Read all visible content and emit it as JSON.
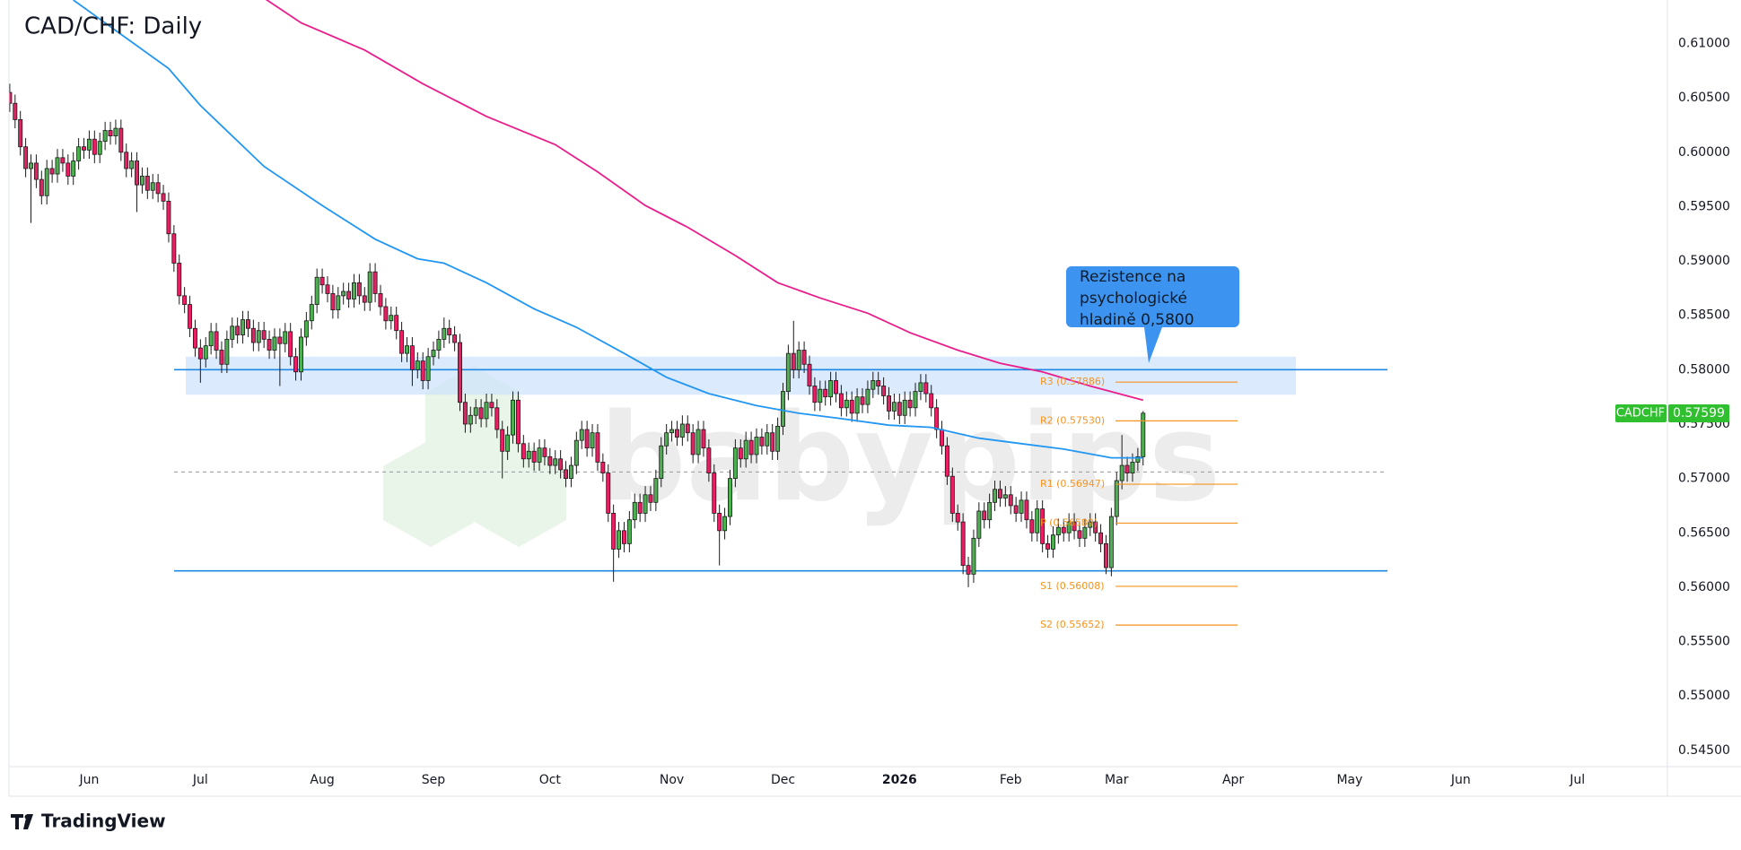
{
  "chart_data": {
    "type": "candlestick",
    "title": "CAD/CHF: Daily",
    "open": [
      0.6055,
      0.6045,
      0.603,
      0.6005,
      0.5985,
      0.599,
      0.5975,
      0.596,
      0.5985,
      0.598,
      0.5995,
      0.599,
      0.5978,
      0.5992,
      0.6005,
      0.6002,
      0.6012,
      0.5998,
      0.601,
      0.602,
      0.6015,
      0.6022,
      0.6,
      0.5985,
      0.5992,
      0.597,
      0.5978,
      0.5965,
      0.5972,
      0.5962,
      0.5955,
      0.5925,
      0.5898,
      0.5868,
      0.586,
      0.5838,
      0.582,
      0.581,
      0.5822,
      0.5835,
      0.5818,
      0.5805,
      0.5828,
      0.584,
      0.5832,
      0.5846,
      0.5838,
      0.5825,
      0.5836,
      0.5828,
      0.5818,
      0.583,
      0.5824,
      0.5835,
      0.5812,
      0.5798,
      0.583,
      0.5845,
      0.586,
      0.5885,
      0.5878,
      0.587,
      0.5855,
      0.5868,
      0.5872,
      0.5865,
      0.588,
      0.5868,
      0.5862,
      0.589,
      0.587,
      0.5858,
      0.5845,
      0.585,
      0.5836,
      0.5815,
      0.5822,
      0.58,
      0.5808,
      0.579,
      0.5812,
      0.5818,
      0.5828,
      0.5838,
      0.5832,
      0.5825,
      0.577,
      0.575,
      0.5758,
      0.5765,
      0.5755,
      0.577,
      0.5765,
      0.5745,
      0.5725,
      0.574,
      0.5772,
      0.5732,
      0.5718,
      0.5725,
      0.5715,
      0.5728,
      0.572,
      0.5712,
      0.5718,
      0.5708,
      0.57,
      0.5712,
      0.5735,
      0.5745,
      0.5728,
      0.5742,
      0.5715,
      0.5705,
      0.5668,
      0.5635,
      0.5652,
      0.564,
      0.5662,
      0.5678,
      0.5668,
      0.5685,
      0.5678,
      0.57,
      0.573,
      0.5742,
      0.5745,
      0.5738,
      0.575,
      0.5742,
      0.5722,
      0.5745,
      0.5728,
      0.5705,
      0.5668,
      0.5652,
      0.5665,
      0.57,
      0.5728,
      0.5718,
      0.5735,
      0.5722,
      0.5738,
      0.573,
      0.5742,
      0.5725,
      0.5748,
      0.578,
      0.5815,
      0.58,
      0.5818,
      0.5805,
      0.5785,
      0.577,
      0.5782,
      0.5775,
      0.579,
      0.5778,
      0.5765,
      0.5772,
      0.576,
      0.5775,
      0.5768,
      0.5782,
      0.579,
      0.5785,
      0.5776,
      0.5762,
      0.577,
      0.5758,
      0.5772,
      0.5765,
      0.578,
      0.5788,
      0.5778,
      0.5765,
      0.5745,
      0.573,
      0.5702,
      0.5668,
      0.566,
      0.562,
      0.5612,
      0.5645,
      0.567,
      0.5662,
      0.5678,
      0.569,
      0.5682,
      0.5685,
      0.5675,
      0.5668,
      0.568,
      0.5662,
      0.565,
      0.5672,
      0.564,
      0.5635,
      0.5648,
      0.5655,
      0.565,
      0.566,
      0.5652,
      0.5645,
      0.5655,
      0.566,
      0.565,
      0.564,
      0.5618,
      0.5665,
      0.5698,
      0.5712,
      0.5705,
      0.5715,
      0.572
    ],
    "high": [
      0.6063,
      0.6053,
      0.6038,
      0.6013,
      0.5998,
      0.5998,
      0.5983,
      0.5993,
      0.5993,
      0.6003,
      0.6003,
      0.5998,
      0.6,
      0.6013,
      0.6013,
      0.602,
      0.602,
      0.6018,
      0.6028,
      0.6028,
      0.603,
      0.603,
      0.6008,
      0.6,
      0.6,
      0.5986,
      0.5986,
      0.598,
      0.598,
      0.597,
      0.5963,
      0.5933,
      0.5906,
      0.5876,
      0.5868,
      0.5846,
      0.5828,
      0.583,
      0.5843,
      0.5843,
      0.5826,
      0.5836,
      0.5848,
      0.5848,
      0.5854,
      0.5854,
      0.5846,
      0.5844,
      0.5844,
      0.5836,
      0.5838,
      0.5838,
      0.5843,
      0.5843,
      0.582,
      0.5838,
      0.5853,
      0.5868,
      0.5893,
      0.5893,
      0.5886,
      0.5878,
      0.5876,
      0.588,
      0.588,
      0.5888,
      0.5888,
      0.5876,
      0.5898,
      0.5898,
      0.5878,
      0.5866,
      0.5858,
      0.5858,
      0.5844,
      0.583,
      0.583,
      0.5816,
      0.5816,
      0.582,
      0.5826,
      0.5836,
      0.5848,
      0.5846,
      0.584,
      0.5833,
      0.5778,
      0.5766,
      0.5773,
      0.5773,
      0.5778,
      0.5778,
      0.5773,
      0.5753,
      0.5748,
      0.578,
      0.578,
      0.574,
      0.5733,
      0.5733,
      0.5736,
      0.5736,
      0.5728,
      0.5726,
      0.5726,
      0.5716,
      0.572,
      0.5743,
      0.5753,
      0.5753,
      0.575,
      0.575,
      0.5723,
      0.5713,
      0.5676,
      0.566,
      0.566,
      0.567,
      0.5686,
      0.5686,
      0.5693,
      0.5693,
      0.5708,
      0.5738,
      0.575,
      0.5753,
      0.5753,
      0.5758,
      0.5758,
      0.575,
      0.5753,
      0.5753,
      0.5736,
      0.5713,
      0.5676,
      0.5673,
      0.5708,
      0.5736,
      0.5736,
      0.5743,
      0.5743,
      0.5746,
      0.5746,
      0.575,
      0.575,
      0.5756,
      0.5788,
      0.5823,
      0.5845,
      0.5826,
      0.5826,
      0.5813,
      0.5793,
      0.579,
      0.579,
      0.5798,
      0.5798,
      0.5786,
      0.578,
      0.578,
      0.5783,
      0.5783,
      0.579,
      0.5798,
      0.5798,
      0.5793,
      0.5784,
      0.5778,
      0.5778,
      0.578,
      0.578,
      0.5788,
      0.5796,
      0.5796,
      0.5786,
      0.5773,
      0.5753,
      0.5738,
      0.571,
      0.5676,
      0.5668,
      0.5628,
      0.5653,
      0.5678,
      0.5678,
      0.5686,
      0.5698,
      0.5698,
      0.5693,
      0.5693,
      0.5683,
      0.5688,
      0.5688,
      0.567,
      0.568,
      0.568,
      0.5648,
      0.5656,
      0.5663,
      0.5663,
      0.5668,
      0.5668,
      0.566,
      0.5663,
      0.5668,
      0.5668,
      0.5658,
      0.5648,
      0.5673,
      0.5706,
      0.574,
      0.572,
      0.5723,
      0.5728,
      0.5762
    ],
    "low": [
      0.6037,
      0.6022,
      0.5997,
      0.5977,
      0.5935,
      0.5967,
      0.5952,
      0.5952,
      0.5972,
      0.5972,
      0.5982,
      0.597,
      0.597,
      0.5984,
      0.5994,
      0.5994,
      0.599,
      0.599,
      0.6002,
      0.6007,
      0.6007,
      0.5992,
      0.5977,
      0.5977,
      0.5945,
      0.5962,
      0.5957,
      0.5957,
      0.5954,
      0.5947,
      0.5917,
      0.589,
      0.586,
      0.5852,
      0.583,
      0.5812,
      0.5788,
      0.5802,
      0.5814,
      0.581,
      0.5797,
      0.5797,
      0.582,
      0.5824,
      0.5824,
      0.583,
      0.5817,
      0.5817,
      0.582,
      0.581,
      0.581,
      0.5785,
      0.5816,
      0.5804,
      0.579,
      0.579,
      0.5822,
      0.5837,
      0.5852,
      0.587,
      0.5862,
      0.5847,
      0.5847,
      0.586,
      0.5857,
      0.5857,
      0.586,
      0.5854,
      0.5854,
      0.5862,
      0.585,
      0.5837,
      0.5837,
      0.5828,
      0.5807,
      0.5807,
      0.5785,
      0.5792,
      0.5782,
      0.5782,
      0.5804,
      0.581,
      0.582,
      0.5824,
      0.5817,
      0.5762,
      0.5742,
      0.5742,
      0.575,
      0.5747,
      0.5747,
      0.5757,
      0.5737,
      0.57,
      0.5717,
      0.5732,
      0.5724,
      0.571,
      0.571,
      0.5707,
      0.5707,
      0.5712,
      0.5704,
      0.5704,
      0.57,
      0.5692,
      0.5692,
      0.5704,
      0.5727,
      0.572,
      0.572,
      0.5707,
      0.5697,
      0.566,
      0.5605,
      0.5627,
      0.5632,
      0.5632,
      0.5654,
      0.566,
      0.566,
      0.567,
      0.567,
      0.5692,
      0.5722,
      0.5734,
      0.573,
      0.573,
      0.5734,
      0.5714,
      0.5714,
      0.572,
      0.5697,
      0.566,
      0.562,
      0.5644,
      0.5657,
      0.5692,
      0.571,
      0.571,
      0.5714,
      0.5714,
      0.5722,
      0.5722,
      0.5717,
      0.5717,
      0.574,
      0.5772,
      0.5792,
      0.5792,
      0.5797,
      0.5777,
      0.5762,
      0.5762,
      0.5767,
      0.5767,
      0.577,
      0.5757,
      0.5757,
      0.5752,
      0.5752,
      0.576,
      0.576,
      0.5774,
      0.5777,
      0.5768,
      0.5754,
      0.5754,
      0.575,
      0.575,
      0.5757,
      0.5757,
      0.5772,
      0.577,
      0.5757,
      0.5737,
      0.5722,
      0.5694,
      0.566,
      0.5652,
      0.5612,
      0.56,
      0.5604,
      0.5637,
      0.5654,
      0.5654,
      0.567,
      0.5674,
      0.5674,
      0.5667,
      0.566,
      0.566,
      0.5654,
      0.5642,
      0.5642,
      0.5632,
      0.5627,
      0.5627,
      0.564,
      0.5642,
      0.5642,
      0.5644,
      0.5637,
      0.5637,
      0.5647,
      0.5642,
      0.5632,
      0.5612,
      0.561,
      0.5657,
      0.569,
      0.5697,
      0.5697,
      0.5707,
      0.5712
    ],
    "close": [
      0.6045,
      0.603,
      0.6005,
      0.5985,
      0.599,
      0.5975,
      0.596,
      0.5985,
      0.598,
      0.5995,
      0.599,
      0.5978,
      0.5992,
      0.6005,
      0.6002,
      0.6012,
      0.5998,
      0.601,
      0.602,
      0.6015,
      0.6022,
      0.6,
      0.5985,
      0.5992,
      0.597,
      0.5978,
      0.5965,
      0.5972,
      0.5962,
      0.5955,
      0.5925,
      0.5898,
      0.5868,
      0.586,
      0.5838,
      0.582,
      0.581,
      0.5822,
      0.5835,
      0.5818,
      0.5805,
      0.5828,
      0.584,
      0.5832,
      0.5846,
      0.5838,
      0.5825,
      0.5836,
      0.5828,
      0.5818,
      0.583,
      0.5824,
      0.5835,
      0.5812,
      0.5798,
      0.583,
      0.5845,
      0.586,
      0.5885,
      0.5878,
      0.587,
      0.5855,
      0.5868,
      0.5872,
      0.5865,
      0.588,
      0.5868,
      0.5862,
      0.589,
      0.587,
      0.5858,
      0.5845,
      0.585,
      0.5836,
      0.5815,
      0.5822,
      0.58,
      0.5808,
      0.579,
      0.5812,
      0.5818,
      0.5828,
      0.5838,
      0.5832,
      0.5825,
      0.577,
      0.575,
      0.5758,
      0.5765,
      0.5755,
      0.577,
      0.5765,
      0.5745,
      0.5725,
      0.574,
      0.5772,
      0.5732,
      0.5718,
      0.5725,
      0.5715,
      0.5728,
      0.572,
      0.5712,
      0.5718,
      0.5708,
      0.57,
      0.5712,
      0.5735,
      0.5745,
      0.5728,
      0.5742,
      0.5715,
      0.5705,
      0.5668,
      0.5635,
      0.5652,
      0.564,
      0.5662,
      0.5678,
      0.5668,
      0.5685,
      0.5678,
      0.57,
      0.573,
      0.5742,
      0.5745,
      0.5738,
      0.575,
      0.5742,
      0.5722,
      0.5745,
      0.5728,
      0.5705,
      0.5668,
      0.5652,
      0.5665,
      0.57,
      0.5728,
      0.5718,
      0.5735,
      0.5722,
      0.5738,
      0.573,
      0.5742,
      0.5725,
      0.5748,
      0.578,
      0.5815,
      0.58,
      0.5818,
      0.5805,
      0.5785,
      0.577,
      0.5782,
      0.5775,
      0.579,
      0.5778,
      0.5765,
      0.5772,
      0.576,
      0.5775,
      0.5768,
      0.5782,
      0.579,
      0.5785,
      0.5776,
      0.5762,
      0.577,
      0.5758,
      0.5772,
      0.5765,
      0.578,
      0.5788,
      0.5778,
      0.5765,
      0.5745,
      0.573,
      0.5702,
      0.5668,
      0.566,
      0.562,
      0.5612,
      0.5645,
      0.567,
      0.5662,
      0.5678,
      0.569,
      0.5682,
      0.5685,
      0.5675,
      0.5668,
      0.568,
      0.5662,
      0.565,
      0.5672,
      0.564,
      0.5635,
      0.5648,
      0.5655,
      0.565,
      0.566,
      0.5652,
      0.5645,
      0.5655,
      0.566,
      0.565,
      0.564,
      0.5618,
      0.5665,
      0.5698,
      0.5712,
      0.5705,
      0.5715,
      0.572,
      0.576
    ],
    "up_color": "#4caf50",
    "down_color": "#e91e63",
    "moving_averages": [
      {
        "color": "#2196f3",
        "x": [
          12,
          30,
          36,
          48,
          59,
          69,
          77,
          82,
          90,
          99,
          107,
          116,
          124,
          132,
          141,
          149,
          157,
          166,
          174,
          183,
          191,
          199,
          208,
          214
        ],
        "values": [
          0.614,
          0.6077,
          0.6043,
          0.5987,
          0.5951,
          0.592,
          0.5902,
          0.5898,
          0.588,
          0.5856,
          0.5839,
          0.5815,
          0.5793,
          0.5778,
          0.5767,
          0.576,
          0.5755,
          0.5749,
          0.5747,
          0.5737,
          0.5732,
          0.5727,
          0.5719,
          0.5719
        ]
      },
      {
        "color": "#e91e8c",
        "x": [
          47,
          55,
          67,
          78,
          90,
          103,
          111,
          120,
          128,
          137,
          145,
          153,
          162,
          170,
          179,
          187,
          195,
          204,
          214
        ],
        "values": [
          0.6145,
          0.6119,
          0.6094,
          0.6063,
          0.6033,
          0.6007,
          0.5982,
          0.5951,
          0.5931,
          0.5905,
          0.588,
          0.5866,
          0.5852,
          0.5834,
          0.5818,
          0.5806,
          0.5798,
          0.5785,
          0.5772
        ]
      }
    ],
    "xlim": [
      -1,
      313
    ],
    "ylim": [
      0.5435,
      0.614
    ],
    "xticks": [
      {
        "value": 15,
        "label": "Jun"
      },
      {
        "value": 36,
        "label": "Jul"
      },
      {
        "value": 59,
        "label": "Aug"
      },
      {
        "value": 80,
        "label": "Sep"
      },
      {
        "value": 102,
        "label": "Oct"
      },
      {
        "value": 125,
        "label": "Nov"
      },
      {
        "value": 146,
        "label": "Dec"
      },
      {
        "value": 168,
        "label": "2026"
      },
      {
        "value": 189,
        "label": "Feb"
      },
      {
        "value": 209,
        "label": "Mar"
      },
      {
        "value": 231,
        "label": "Apr"
      },
      {
        "value": 253,
        "label": "May"
      },
      {
        "value": 274,
        "label": "Jun"
      },
      {
        "value": 296,
        "label": "Jul"
      }
    ],
    "yticks": [
      {
        "value": 0.545,
        "label": "0.54500"
      },
      {
        "value": 0.55,
        "label": "0.55000"
      },
      {
        "value": 0.555,
        "label": "0.55500"
      },
      {
        "value": 0.56,
        "label": "0.56000"
      },
      {
        "value": 0.565,
        "label": "0.56500"
      },
      {
        "value": 0.57,
        "label": "0.57000"
      },
      {
        "value": 0.575,
        "label": "0.57500"
      },
      {
        "value": 0.58,
        "label": "0.58000"
      },
      {
        "value": 0.585,
        "label": "0.58500"
      },
      {
        "value": 0.59,
        "label": "0.59000"
      },
      {
        "value": 0.595,
        "label": "0.59500"
      },
      {
        "value": 0.6,
        "label": "0.60000"
      },
      {
        "value": 0.605,
        "label": "0.60500"
      },
      {
        "value": 0.61,
        "label": "0.61000"
      }
    ],
    "resistance_zone": {
      "low": 0.5777,
      "high": 0.5812,
      "color": "#cfe3fb"
    },
    "hlines": [
      {
        "value": 0.58,
        "color": "#1e88e5"
      },
      {
        "value": 0.5615,
        "color": "#1e88e5"
      }
    ],
    "dashed_line": 0.5706,
    "pivots": [
      {
        "label": "R3 (0.57886)",
        "value": 0.57886
      },
      {
        "label": "R2 (0.57530)",
        "value": 0.5753
      },
      {
        "label": "R1 (0.56947)",
        "value": 0.56947
      },
      {
        "label": "P (0.56589)",
        "value": 0.56589
      },
      {
        "label": "S1 (0.56008)",
        "value": 0.56008
      },
      {
        "label": "S2 (0.55652)",
        "value": 0.55652
      }
    ],
    "pivot_color": "#f7931e",
    "callout": [
      "Rezistence na",
      "psychologické",
      "hladině 0,5800"
    ],
    "last_price": {
      "symbol": "CADCHF",
      "value": 0.57599,
      "color": "#2fbf2f"
    },
    "watermark": "babypips",
    "brand": "TradingView"
  }
}
